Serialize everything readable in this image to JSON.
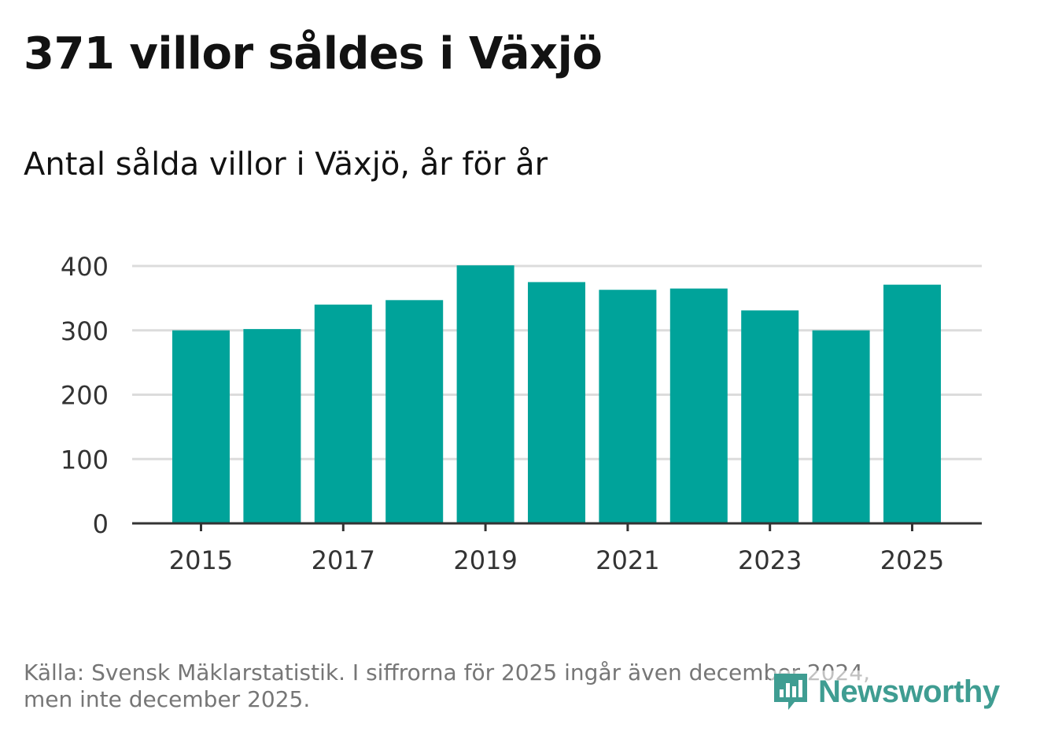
{
  "title": "371 villor såldes i Växjö",
  "subtitle": "Antal sålda villor i Växjö, år för år",
  "source": {
    "line1": "Källa: Svensk Mäklarstatistik. I siffrorna för 2025 ingår även december 2024,",
    "line2": "men inte december 2025."
  },
  "logo": {
    "text": "Newsworthy",
    "icon": "newsworthy-logo-icon"
  },
  "colors": {
    "bar": "#00a39a",
    "grid": "#dcdcdc",
    "axis": "#333333",
    "tick_text": "#333333",
    "logo": "#3f9d92"
  },
  "chart_data": {
    "type": "bar",
    "title": "Antal sålda villor i Växjö, år för år",
    "xlabel": "",
    "ylabel": "",
    "categories": [
      2015,
      2016,
      2017,
      2018,
      2019,
      2020,
      2021,
      2022,
      2023,
      2024,
      2025
    ],
    "values": [
      300,
      302,
      340,
      347,
      401,
      375,
      363,
      365,
      331,
      300,
      371
    ],
    "ylim": [
      0,
      400
    ],
    "yticks": [
      0,
      100,
      200,
      300,
      400
    ],
    "xticks": [
      2015,
      2017,
      2019,
      2021,
      2023,
      2025
    ],
    "grid": true,
    "legend": "none"
  }
}
